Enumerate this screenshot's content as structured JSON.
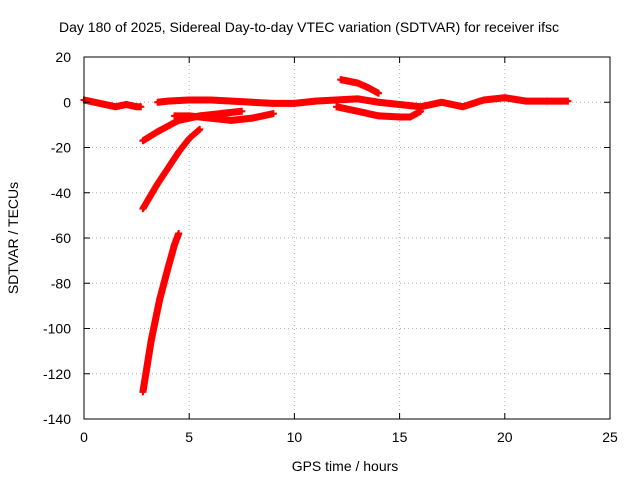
{
  "chart_data": {
    "type": "scatter",
    "title": "Day 180 of 2025, Sidereal Day-to-day VTEC variation (SDTVAR) for receiver ifsc",
    "xlabel": "GPS time / hours",
    "ylabel": "SDTVAR / TECUs",
    "xlim": [
      0,
      25
    ],
    "ylim": [
      -140,
      20
    ],
    "x_ticks": [
      0,
      5,
      10,
      15,
      20,
      25
    ],
    "y_ticks": [
      -140,
      -120,
      -100,
      -80,
      -60,
      -40,
      -20,
      0,
      20
    ],
    "grid": true,
    "marker": "plus",
    "series_color": "#ff0000",
    "series": [
      {
        "x": [
          0.0,
          0.5,
          1.0,
          1.5,
          2.0,
          2.5,
          2.7
        ],
        "y": [
          1,
          0,
          -1,
          -2,
          -1,
          -2,
          -2
        ]
      },
      {
        "x": [
          3.5,
          4.0,
          5.0,
          6.0,
          7.0,
          8.0,
          9.0,
          10.0,
          11.0,
          12.0,
          13.0,
          14.0,
          15.0,
          16.0,
          17.0,
          18.0,
          19.0,
          20.0,
          21.0,
          22.0,
          23.0
        ],
        "y": [
          0,
          0.5,
          1,
          1,
          0.5,
          0,
          -0.5,
          -0.5,
          0.5,
          1,
          1.5,
          0,
          -1,
          -2,
          0,
          -2,
          1,
          2,
          0.5,
          0.5,
          0.5
        ]
      },
      {
        "x": [
          2.8,
          3.5,
          4.5,
          5.5,
          6.5,
          7.5
        ],
        "y": [
          -17,
          -13,
          -8,
          -6,
          -5,
          -4
        ]
      },
      {
        "x": [
          4.3,
          5.0,
          6.0,
          7.0,
          8.0,
          9.0
        ],
        "y": [
          -6,
          -6,
          -7,
          -8,
          -7,
          -5
        ]
      },
      {
        "x": [
          2.8,
          3.5,
          4.0,
          4.5,
          5.0,
          5.5
        ],
        "y": [
          -47,
          -36,
          -29,
          -22,
          -16,
          -12
        ]
      },
      {
        "x": [
          2.8,
          3.2,
          3.6,
          4.0,
          4.3,
          4.5
        ],
        "y": [
          -128,
          -105,
          -87,
          -73,
          -63,
          -58
        ]
      },
      {
        "x": [
          12.2,
          13.0,
          13.5,
          14.0
        ],
        "y": [
          10,
          8.5,
          6.5,
          4
        ]
      },
      {
        "x": [
          12.0,
          13.0,
          14.0,
          15.0,
          15.5,
          16.0
        ],
        "y": [
          -2,
          -4,
          -6,
          -6.5,
          -6.5,
          -4
        ]
      }
    ]
  }
}
